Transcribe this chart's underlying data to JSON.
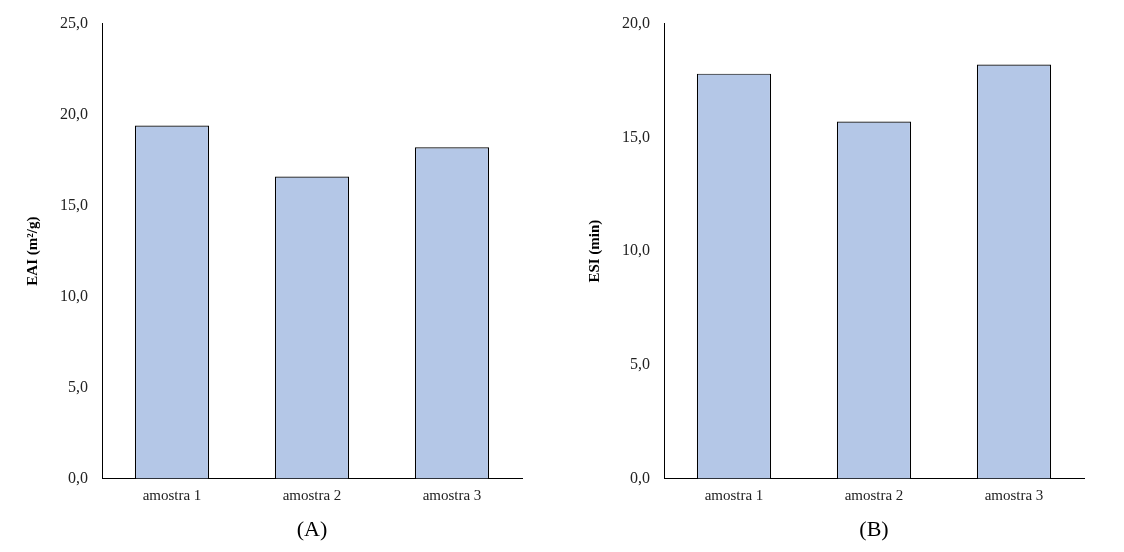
{
  "chart_data": [
    {
      "type": "bar",
      "categories": [
        "amostra 1",
        "amostra 2",
        "amostra 3"
      ],
      "values": [
        19.4,
        16.6,
        18.2
      ],
      "color": "#b4c7e7",
      "ylabel": "EAI (m²/g)",
      "xlabel": "(A)",
      "ylim": [
        0,
        25
      ],
      "yticks": [
        {
          "value": 0,
          "label": "0,0"
        },
        {
          "value": 5,
          "label": "5,0"
        },
        {
          "value": 10,
          "label": "10,0"
        },
        {
          "value": 15,
          "label": "15,0"
        },
        {
          "value": 20,
          "label": "20,0"
        },
        {
          "value": 25,
          "label": "25,0"
        }
      ],
      "grid": false,
      "legend": false
    },
    {
      "type": "bar",
      "categories": [
        "amostra 1",
        "amostra 2",
        "amostra 3"
      ],
      "values": [
        17.8,
        15.7,
        18.2
      ],
      "color": "#b4c7e7",
      "ylabel": "ESI (min)",
      "xlabel": "(B)",
      "ylim": [
        0,
        20
      ],
      "yticks": [
        {
          "value": 0,
          "label": "0,0"
        },
        {
          "value": 5,
          "label": "5,0"
        },
        {
          "value": 10,
          "label": "10,0"
        },
        {
          "value": 15,
          "label": "15,0"
        },
        {
          "value": 20,
          "label": "20,0"
        }
      ],
      "grid": false,
      "legend": false
    }
  ]
}
